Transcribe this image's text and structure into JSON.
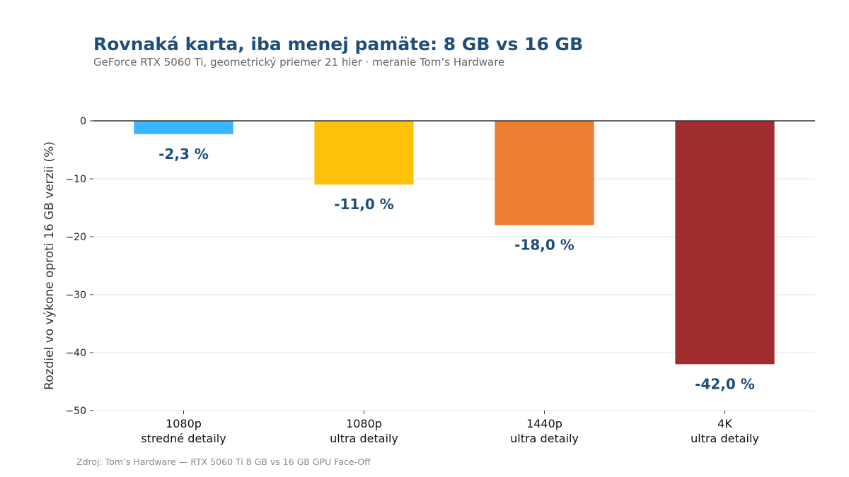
{
  "title": "Rovnaká karta, iba menej pamäte: 8 GB vs 16 GB",
  "subtitle": "GeForce RTX 5060 Ti, geometrický priemer 21 hier · meranie Tom’s Hardware",
  "source": "Zdroj: Tom’s Hardware — RTX 5060 Ti 8 GB vs 16 GB GPU Face-Off",
  "chart_data": {
    "type": "bar",
    "title": "Rovnaká karta, iba menej pamäte: 8 GB vs 16 GB",
    "subtitle": "GeForce RTX 5060 Ti, geometrický priemer 21 hier · meranie Tom’s Hardware",
    "ylabel": "Rozdiel vo výkone oproti 16 GB verzii (%)",
    "xlabel": "",
    "categories": [
      [
        "1080p",
        "stredné detaily"
      ],
      [
        "1080p",
        "ultra detaily"
      ],
      [
        "1440p",
        "ultra detaily"
      ],
      [
        "4K",
        "ultra detaily"
      ]
    ],
    "values": [
      -2.3,
      -11.0,
      -18.0,
      -42.0
    ],
    "data_labels": [
      "-2,3 %",
      "-11,0 %",
      "-18,0 %",
      "-42,0 %"
    ],
    "colors": [
      "#38b6ff",
      "#ffc20a",
      "#ed7d31",
      "#a12c2e"
    ],
    "ylim": [
      -50,
      0
    ],
    "yticks": [
      0,
      -10,
      -20,
      -30,
      -40,
      -50
    ],
    "ytick_labels": [
      "0",
      "−10",
      "−20",
      "−30",
      "−40",
      "−50"
    ],
    "grid": true,
    "label_color": "#1f4e79"
  }
}
